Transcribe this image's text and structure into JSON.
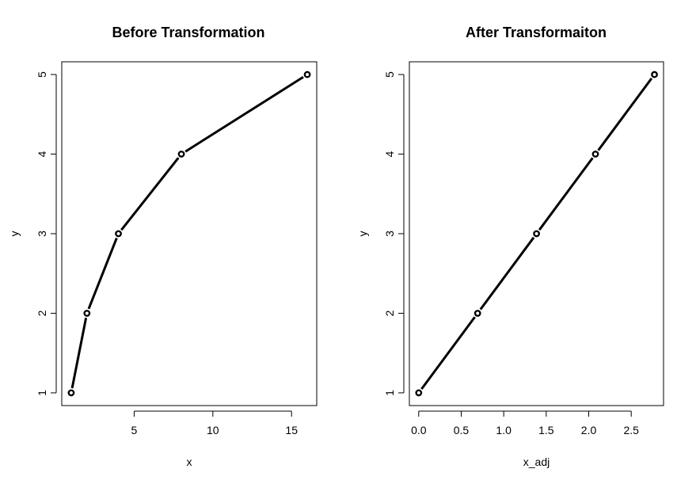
{
  "chart_data": [
    {
      "type": "line",
      "title": "Before Transformation",
      "xlabel": "x",
      "ylabel": "y",
      "x": [
        1,
        2,
        4,
        8,
        16
      ],
      "y": [
        1,
        2,
        3,
        4,
        5
      ],
      "xlim": [
        0.4,
        16.6
      ],
      "ylim": [
        0.84,
        5.16
      ],
      "xticks": [
        5,
        10,
        15
      ],
      "xtick_labels": [
        "5",
        "10",
        "15"
      ],
      "yticks": [
        1,
        2,
        3,
        4,
        5
      ],
      "ytick_labels": [
        "1",
        "2",
        "3",
        "4",
        "5"
      ],
      "grid": false,
      "markers": "open-circle"
    },
    {
      "type": "line",
      "title": "After Transformaiton",
      "xlabel": "x_adj",
      "ylabel": "y",
      "x": [
        0,
        0.693,
        1.386,
        2.079,
        2.773
      ],
      "y": [
        1,
        2,
        3,
        4,
        5
      ],
      "xlim": [
        -0.11,
        2.88
      ],
      "ylim": [
        0.84,
        5.16
      ],
      "xticks": [
        0,
        0.5,
        1,
        1.5,
        2,
        2.5
      ],
      "xtick_labels": [
        "0.0",
        "0.5",
        "1.0",
        "1.5",
        "2.0",
        "2.5"
      ],
      "yticks": [
        1,
        2,
        3,
        4,
        5
      ],
      "ytick_labels": [
        "1",
        "2",
        "3",
        "4",
        "5"
      ],
      "grid": false,
      "markers": "open-circle"
    }
  ]
}
